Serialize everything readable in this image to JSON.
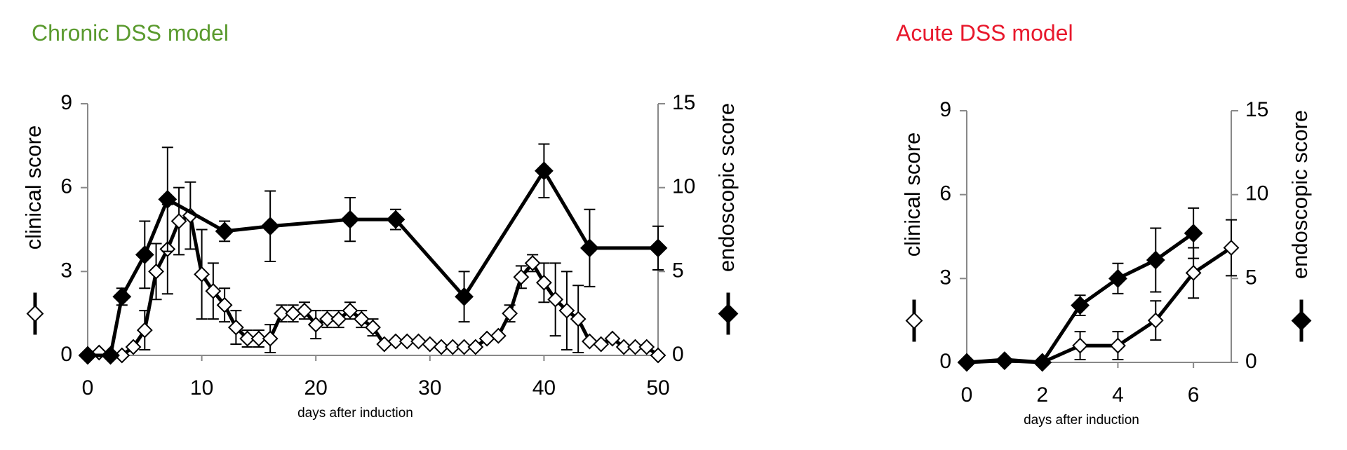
{
  "chart_data": [
    {
      "type": "line",
      "title": "Chronic DSS model",
      "title_color": "#5a9a2e",
      "xlabel": "days after induction",
      "xlim": [
        0,
        50
      ],
      "xticks": [
        0,
        10,
        20,
        30,
        40,
        50
      ],
      "ylim": [
        0,
        9
      ],
      "yticks": [
        0,
        3,
        6,
        9
      ],
      "y2lim": [
        0,
        15
      ],
      "y2ticks": [
        0,
        5,
        10,
        15
      ],
      "series": [
        {
          "name": "clinical score",
          "color": "#000000",
          "marker": "open-diamond",
          "axis": "y",
          "x": [
            0,
            1,
            2,
            3,
            4,
            5,
            6,
            7,
            8,
            9,
            10,
            11,
            12,
            13,
            14,
            15,
            16,
            17,
            18,
            19,
            20,
            21,
            22,
            23,
            24,
            25,
            26,
            27,
            28,
            29,
            30,
            31,
            32,
            33,
            34,
            35,
            36,
            37,
            38,
            39,
            40,
            41,
            42,
            43,
            44,
            45,
            46,
            47,
            48,
            49,
            50
          ],
          "values": [
            0,
            0.1,
            0,
            0,
            0.3,
            0.9,
            3.0,
            3.8,
            4.8,
            5.0,
            2.9,
            2.3,
            1.8,
            1.0,
            0.6,
            0.6,
            0.6,
            1.5,
            1.5,
            1.6,
            1.1,
            1.3,
            1.3,
            1.6,
            1.3,
            1.0,
            0.4,
            0.5,
            0.5,
            0.5,
            0.4,
            0.3,
            0.3,
            0.3,
            0.3,
            0.6,
            0.7,
            1.5,
            2.8,
            3.3,
            2.6,
            2.0,
            1.6,
            1.3,
            0.5,
            0.4,
            0.6,
            0.3,
            0.3,
            0.3,
            0
          ],
          "errors": [
            null,
            null,
            null,
            null,
            null,
            0.7,
            1.0,
            1.6,
            1.2,
            1.2,
            1.6,
            1.0,
            0.6,
            0.6,
            0.3,
            0.3,
            0.5,
            0.3,
            0.3,
            0.3,
            0.5,
            0.3,
            0.3,
            0.3,
            0.3,
            0.3,
            null,
            null,
            null,
            null,
            null,
            null,
            null,
            null,
            null,
            null,
            null,
            0.3,
            0.4,
            0.3,
            0.7,
            1.3,
            1.4,
            1.2,
            null,
            null,
            null,
            null,
            null,
            null,
            null
          ]
        },
        {
          "name": "endoscopic score",
          "color": "#000000",
          "marker": "filled-diamond",
          "axis": "y2",
          "x": [
            0,
            2,
            3,
            5,
            7,
            12,
            16,
            23,
            27,
            33,
            40,
            44,
            50
          ],
          "values": [
            0,
            0,
            3.5,
            6.0,
            9.3,
            7.4,
            7.7,
            8.1,
            8.1,
            3.5,
            11.0,
            6.4,
            6.4
          ],
          "errors": [
            null,
            null,
            0.5,
            2.0,
            3.1,
            0.6,
            2.1,
            1.3,
            0.6,
            1.5,
            1.6,
            2.3,
            1.3
          ]
        }
      ]
    },
    {
      "type": "line",
      "title": "Acute DSS model",
      "title_color": "#e8182c",
      "xlabel": "days after induction",
      "xlim": [
        0,
        7
      ],
      "xticks": [
        0,
        2,
        4,
        6
      ],
      "ylim": [
        0,
        9
      ],
      "yticks": [
        0,
        3,
        6,
        9
      ],
      "y2lim": [
        0,
        15
      ],
      "y2ticks": [
        0,
        5,
        10,
        15
      ],
      "series": [
        {
          "name": "clinical score",
          "color": "#000000",
          "marker": "open-diamond",
          "axis": "y",
          "x": [
            0,
            1,
            2,
            3,
            4,
            5,
            6,
            7
          ],
          "values": [
            0,
            0.1,
            0,
            0.6,
            0.6,
            1.5,
            3.2,
            4.1
          ],
          "errors": [
            null,
            null,
            null,
            0.5,
            0.5,
            0.7,
            0.9,
            1.0
          ]
        },
        {
          "name": "endoscopic score",
          "color": "#000000",
          "marker": "filled-diamond",
          "axis": "y2",
          "x": [
            0,
            1,
            2,
            3,
            4,
            5,
            6
          ],
          "values": [
            0,
            0.1,
            0,
            3.4,
            5.0,
            6.1,
            7.7
          ],
          "errors": [
            null,
            null,
            null,
            0.6,
            0.9,
            1.9,
            1.5
          ]
        }
      ]
    }
  ]
}
